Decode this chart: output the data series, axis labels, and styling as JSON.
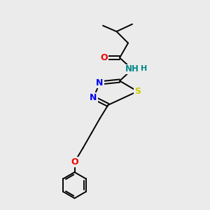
{
  "background_color": "#ebebeb",
  "bond_color": "#000000",
  "atom_colors": {
    "N": "#0000ee",
    "O": "#ee0000",
    "S": "#cccc00",
    "H": "#008888",
    "C": "#000000"
  },
  "figsize": [
    3.0,
    3.0
  ],
  "dpi": 100,
  "bond_lw": 1.4,
  "font_size": 9,
  "xlim": [
    0,
    10
  ],
  "ylim": [
    0,
    10
  ]
}
